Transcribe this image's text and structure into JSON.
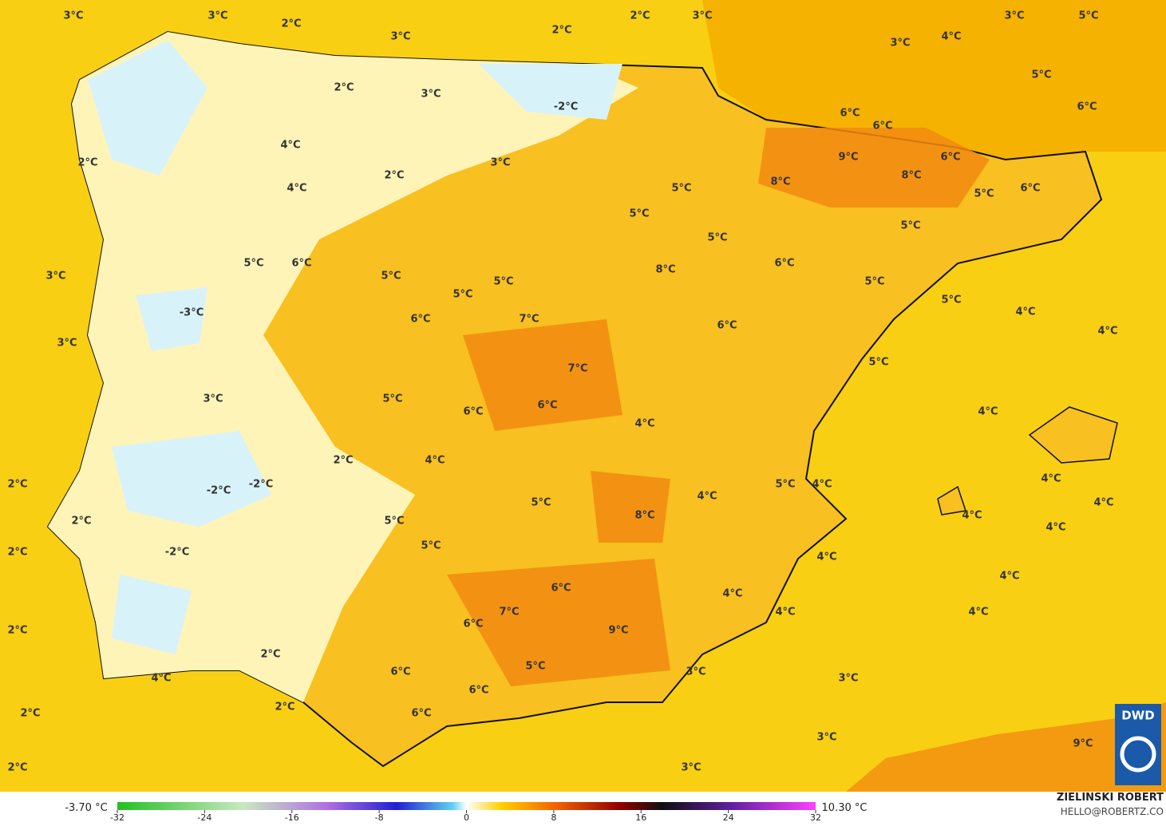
{
  "map": {
    "labels": [
      "3°C",
      "3°C",
      "2°C",
      "3°C",
      "2°C",
      "2°C",
      "3°C",
      "3°C",
      "4°C",
      "3°C",
      "5°C",
      "5°C",
      "6°C",
      "6°C",
      "6°C",
      "9°C",
      "6°C",
      "8°C",
      "8°C",
      "5°C",
      "6°C",
      "5°C",
      "5°C",
      "5°C",
      "5°C",
      "6°C",
      "8°C",
      "5°C",
      "5°C",
      "4°C",
      "4°C",
      "6°C",
      "5°C",
      "4°C",
      "4°C",
      "4°C",
      "4°C",
      "4°C",
      "4°C",
      "4°C",
      "3°C",
      "3°C",
      "3°C",
      "3°C",
      "5°C",
      "4°C",
      "4°C",
      "4°C",
      "4°C",
      "4°C",
      "8°C",
      "4°C",
      "9°C",
      "6°C",
      "7°C",
      "6°C",
      "5°C",
      "6°C",
      "6°C",
      "6°C",
      "5°C",
      "5°C",
      "5°C",
      "4°C",
      "2°C",
      "6°C",
      "6°C",
      "7°C",
      "7°C",
      "6°C",
      "5°C",
      "5°C",
      "5°C",
      "5°C",
      "5°C",
      "6°C",
      "3°C",
      "2°C",
      "4°C",
      "4°C",
      "2°C",
      "3°C",
      "-2°C",
      "2°C",
      "3°C",
      "3°C",
      "-3°C",
      "3°C",
      "-2°C",
      "-2°C",
      "-2°C",
      "2°C",
      "2°C",
      "2°C",
      "2°C",
      "2°C",
      "2°C",
      "4°C",
      "2°C",
      "2°C",
      "9°C"
    ],
    "colorbar": {
      "min_label": "-3.70 °C",
      "max_label": "10.30 °C",
      "range": [
        -32,
        32
      ],
      "ticks": [
        -32,
        -24,
        -16,
        -8,
        0,
        8,
        16,
        24,
        32
      ]
    },
    "author": "ZIELINSKI ROBERT",
    "contact": "HELLO@ROBERTZ.CO",
    "logo": "DWD"
  }
}
